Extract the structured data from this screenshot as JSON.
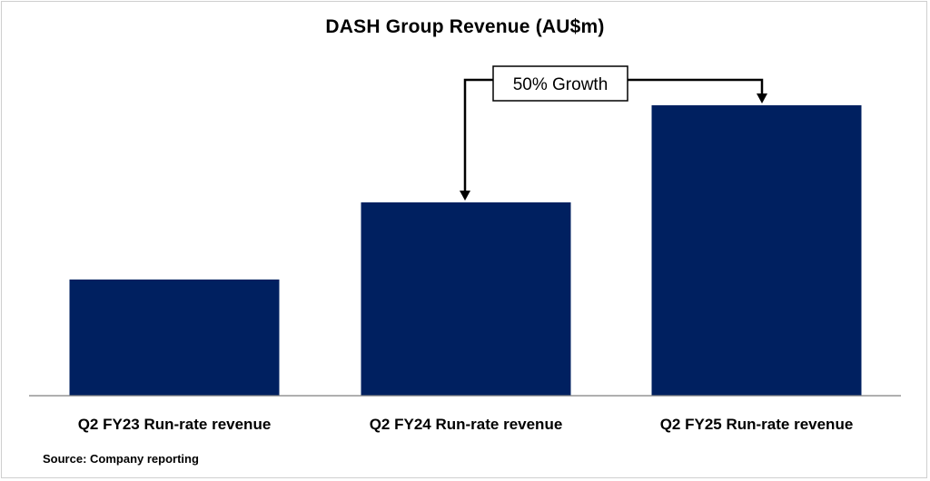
{
  "chart_data": {
    "type": "bar",
    "title": "DASH Group Revenue (AU$m)",
    "categories": [
      "Q2 FY23 Run-rate revenue",
      "Q2 FY24 Run-rate revenue",
      "Q2 FY25 Run-rate revenue"
    ],
    "values": [
      128,
      213,
      320
    ],
    "ylim": [
      0,
      360
    ],
    "bar_color": "#002060",
    "grid": false,
    "annotation": {
      "text": "50% Growth",
      "from_category": "Q2 FY24 Run-rate revenue",
      "to_category": "Q2 FY25 Run-rate revenue"
    }
  },
  "source": "Source: Company reporting"
}
